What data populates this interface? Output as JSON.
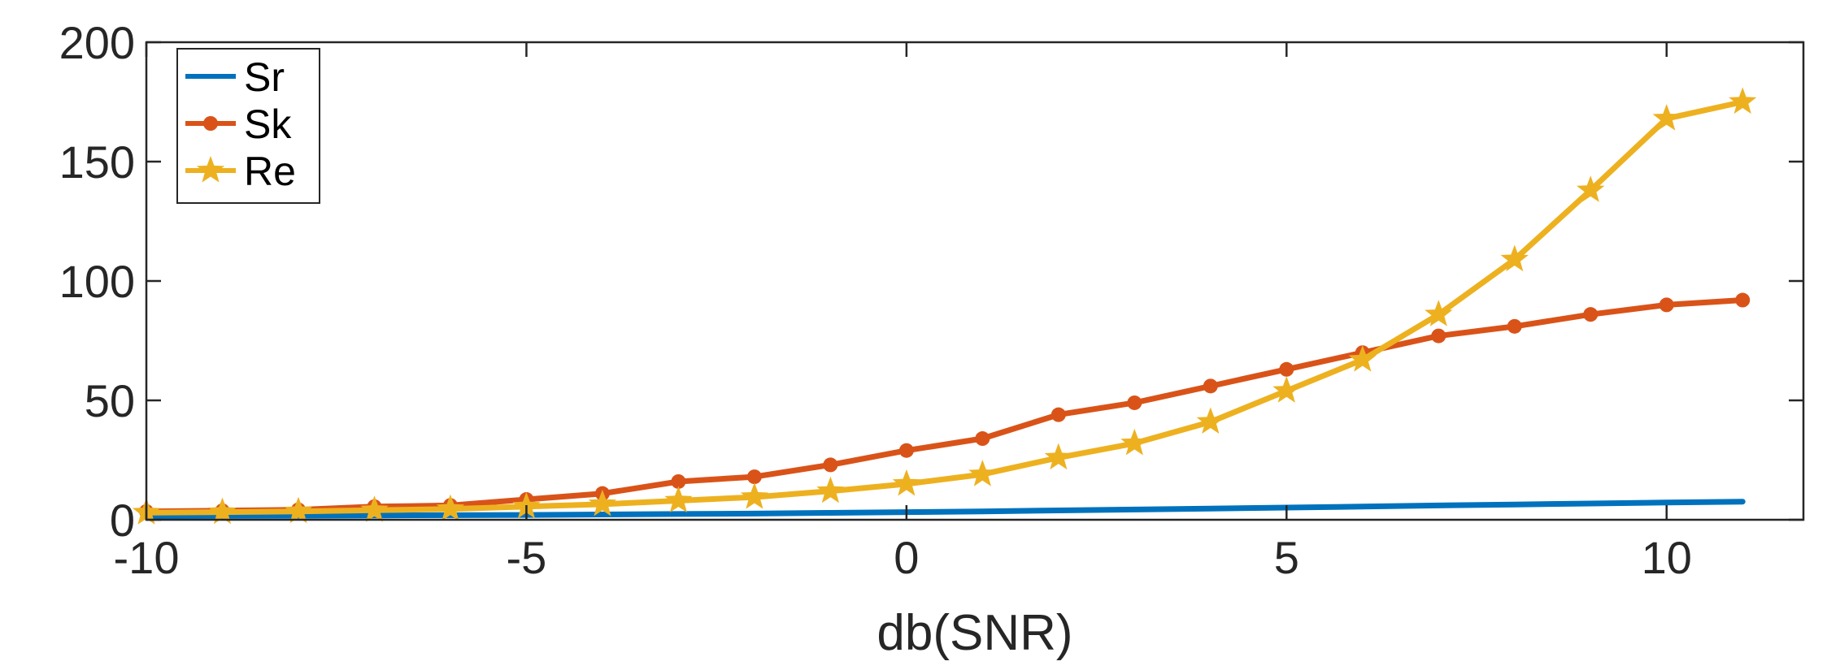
{
  "chart_data": {
    "type": "line",
    "title": "",
    "xlabel": "db(SNR)",
    "ylabel": "",
    "xlim": [
      -10,
      11.8
    ],
    "ylim": [
      0,
      200
    ],
    "xticks": [
      -10,
      -5,
      0,
      5,
      10
    ],
    "yticks": [
      0,
      50,
      100,
      150,
      200
    ],
    "x_tick_labels": [
      "-10",
      "-5",
      "0",
      "5",
      "10"
    ],
    "y_tick_labels": [
      "0",
      "50",
      "100",
      "150",
      "200"
    ],
    "grid": false,
    "legend_position": "top-left",
    "x": [
      -10,
      -9,
      -8,
      -7,
      -6,
      -5,
      -4,
      -3,
      -2,
      -1,
      0,
      1,
      2,
      3,
      4,
      5,
      6,
      7,
      8,
      9,
      10,
      11
    ],
    "series": [
      {
        "name": "Sr",
        "color": "#0072BD",
        "marker": "none",
        "values": [
          1.5,
          1.6,
          1.7,
          1.8,
          1.9,
          2.0,
          2.2,
          2.4,
          2.6,
          2.9,
          3.2,
          3.5,
          3.9,
          4.3,
          4.7,
          5.1,
          5.5,
          6.0,
          6.4,
          6.8,
          7.2,
          7.6
        ]
      },
      {
        "name": "Sk",
        "color": "#D95319",
        "marker": "dot",
        "values": [
          3.5,
          3.8,
          4.2,
          5.5,
          6.0,
          8.5,
          11,
          16,
          18,
          23,
          29,
          34,
          44,
          49,
          56,
          63,
          70,
          77,
          81,
          86,
          90,
          92
        ]
      },
      {
        "name": "Re",
        "color": "#EDB120",
        "marker": "star",
        "values": [
          3.0,
          3.2,
          3.5,
          4.0,
          4.5,
          5.5,
          6.5,
          8.0,
          9.5,
          12,
          15,
          19,
          26,
          32,
          41,
          54,
          67,
          86,
          109,
          138,
          168,
          175
        ]
      }
    ]
  }
}
